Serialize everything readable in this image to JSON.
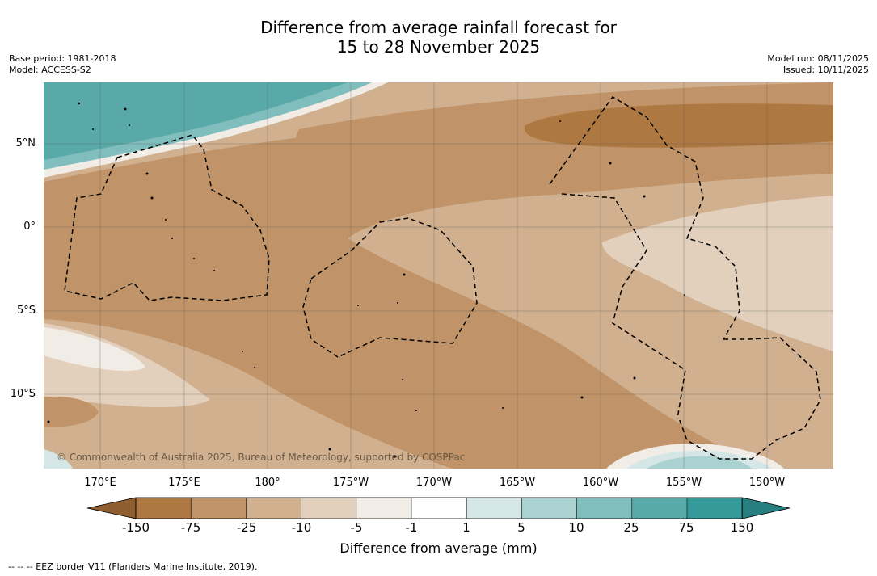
{
  "title_line1": "Difference from average rainfall forecast for",
  "title_line2": "15 to 28 November 2025",
  "base_period": "Base period: 1981-2018",
  "model": "Model: ACCESS-S2",
  "model_run": "Model run: 08/11/2025",
  "issued": "Issued: 10/11/2025",
  "copyright": "© Commonwealth of Australia 2025, Bureau of Meteorology, supported by COSPPac",
  "lat_labels": [
    "5°N",
    "0°",
    "5°S",
    "10°S"
  ],
  "lon_labels": [
    "170°E",
    "175°E",
    "180°",
    "175°W",
    "170°W",
    "165°W",
    "160°W",
    "155°W",
    "150°W"
  ],
  "colorbar": {
    "title": "Difference from average (mm)",
    "ticks": [
      "-150",
      "-75",
      "-25",
      "-10",
      "-5",
      "-1",
      "1",
      "5",
      "10",
      "25",
      "75",
      "150"
    ],
    "colors": [
      "#8f5e30",
      "#ae7842",
      "#c09468",
      "#d1b08f",
      "#e2d0bd",
      "#f2ece6",
      "#ffffff",
      "#d4e7e6",
      "#aad2d1",
      "#80bebd",
      "#59a9a8",
      "#35999a",
      "#277f80"
    ]
  },
  "footer": "--  --  -- EEZ border V11 (Flanders Marine Institute, 2019)."
}
